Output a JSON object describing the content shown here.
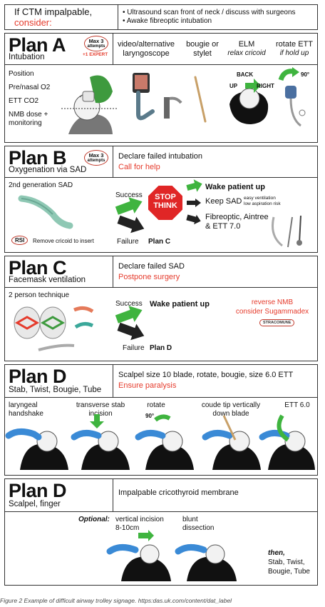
{
  "header": {
    "line1": "If CTM impalpable,",
    "line2": "consider:",
    "bullets": [
      "• Ultrasound scan front of neck / discuss with surgeons",
      "• Awake fibreoptic intubation"
    ]
  },
  "planA": {
    "title": "Plan A",
    "subtitle": "Intubation",
    "badge_line1": "Max 3",
    "badge_line2": "attempts",
    "badge_expert": "+1 EXPERT",
    "options": [
      {
        "label": "video/alternative laryngoscope",
        "sub": ""
      },
      {
        "label": "bougie or stylet",
        "sub": ""
      },
      {
        "label": "ELM",
        "sub": "relax cricoid"
      },
      {
        "label": "rotate ETT",
        "sub": "if hold up"
      }
    ],
    "steps": [
      "Position",
      "Pre/nasal O2",
      "ETT CO2",
      "NMB dose + monitoring"
    ],
    "elm_labels": {
      "back": "BACK",
      "up": "UP",
      "right": "RIGHT"
    },
    "rotate_degrees": "90°"
  },
  "planB": {
    "title": "Plan B",
    "subtitle": "Oxygenation via SAD",
    "badge_line1": "Max 3",
    "badge_line2": "attempts",
    "declare": "Declare failed intubation",
    "call": "Call for help",
    "device": "2nd generation SAD",
    "success": "Success",
    "failure": "Failure",
    "stop1": "STOP",
    "stop2": "THINK",
    "wake": "Wake patient up",
    "keep": "Keep SAD",
    "keep_note1": "easy ventilation",
    "keep_note2": "low aspiration risk",
    "fibre1": "Fibreoptic, Aintree",
    "fibre2": "& ETT 7.0",
    "next": "Plan C",
    "rsi": "RSI",
    "rsi_text": "Remove cricoid to insert"
  },
  "planC": {
    "title": "Plan C",
    "subtitle": "Facemask ventilation",
    "declare": "Declare failed SAD",
    "postpone": "Postpone surgery",
    "technique": "2 person technique",
    "success": "Success",
    "wake": "Wake patient up",
    "failure": "Failure",
    "next": "Plan D",
    "reverse1": "reverse NMB",
    "reverse2": "consider Sugammadex",
    "brand": "STRACOMUNE"
  },
  "planD1": {
    "title": "Plan D",
    "subtitle": "Stab, Twist, Bougie, Tube",
    "instr": "Scalpel size 10 blade, rotate, bougie, size 6.0 ETT",
    "paralysis": "Ensure paralysis",
    "steps": [
      "laryngeal handshake",
      "transverse stab incision",
      "rotate",
      "coude tip vertically down blade",
      "ETT 6.0"
    ],
    "rotate_degrees": "90°"
  },
  "planD2": {
    "title": "Plan D",
    "subtitle": "Scalpel, finger",
    "instr": "Impalpable cricothyroid membrane",
    "optional": "Optional:",
    "step1": "vertical incision 8-10cm",
    "step2": "blunt dissection",
    "then": "then,",
    "then_items": [
      "Stab, Twist,",
      "Bougie, Tube"
    ]
  },
  "caption": "Figure 2 Example of difficult airway trolley signage. https:das.uk.com/content/dat_label",
  "colors": {
    "accent_red": "#e53b2c",
    "arrow_green": "#3fb43f",
    "glove_blue": "#3a8ad6",
    "stop_red": "#e02626"
  }
}
